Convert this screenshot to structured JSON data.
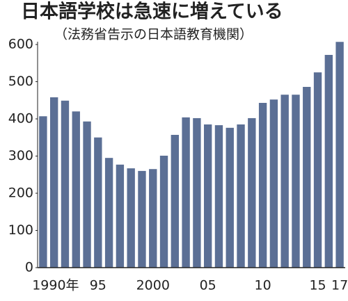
{
  "chart_data": {
    "type": "bar",
    "title": "日本語学校は急速に増えている",
    "subtitle": "（法務省告示の日本語教育機関）",
    "categories": [
      "1990年",
      null,
      null,
      null,
      null,
      "95",
      null,
      null,
      null,
      null,
      "2000",
      null,
      null,
      null,
      null,
      "05",
      null,
      null,
      null,
      null,
      "10",
      null,
      null,
      null,
      null,
      "15",
      null,
      "17"
    ],
    "values": [
      407,
      458,
      449,
      420,
      393,
      350,
      295,
      277,
      267,
      260,
      265,
      301,
      357,
      404,
      402,
      385,
      383,
      376,
      385,
      402,
      443,
      452,
      465,
      465,
      486,
      525,
      572,
      607
    ],
    "color": "#5b6f95",
    "ylim": [
      0,
      600
    ],
    "yticks": [
      0,
      100,
      200,
      300,
      400,
      500,
      600
    ]
  }
}
